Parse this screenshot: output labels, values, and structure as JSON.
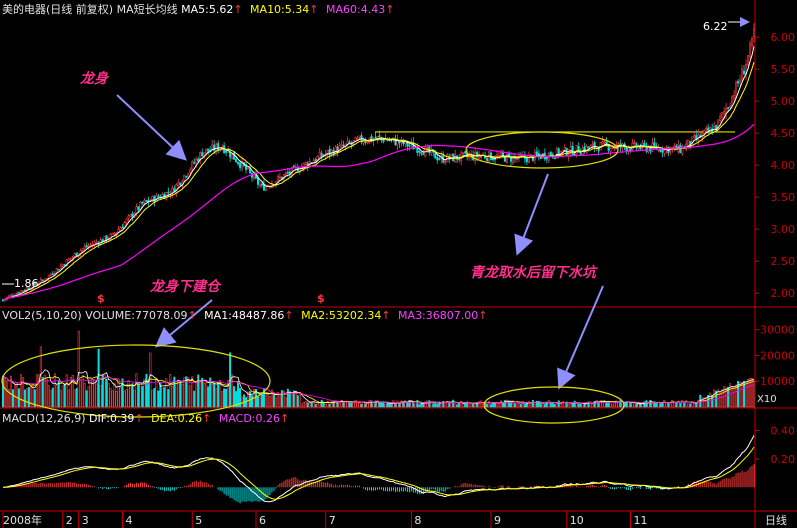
{
  "header": {
    "stock_name": "美的电器(日线 前复权)",
    "ma_title": "MA短长均线",
    "ma5": "MA5:5.62",
    "ma10": "MA10:5.34",
    "ma60": "MA60:4.43",
    "arrow": "↑"
  },
  "volume_header": {
    "title": "VOL2(5,10,20)",
    "volume": "VOLUME:77078.09",
    "ma1": "MA1:48487.86",
    "ma2": "MA2:53202.34",
    "ma3": "MA3:36807.00",
    "arrow": "↑"
  },
  "macd_header": {
    "title": "MACD(12,26,9)",
    "dif": "DIF:0.39",
    "dea": "DEA:0.26",
    "macd": "MACD:0.26",
    "arrow": "↑"
  },
  "annotations": {
    "dragon_body": "龙身",
    "dragon_build": "龙身下建仓",
    "pit": "青龙取水后留下水坑",
    "high_label": "6.22",
    "low_label": "1.86",
    "signal": "$",
    "vol_unit": "X10"
  },
  "colors": {
    "up": "#ff3b3b",
    "down": "#00e0e0",
    "ma5": "#ffffff",
    "ma10": "#ffff00",
    "ma60": "#ff00ff",
    "annotation": "#ff2d8c",
    "arrow": "#8f8fff",
    "ellipse": "#e0e000",
    "axis": "#cc0000"
  },
  "chart_data": [
    {
      "type": "candlestick",
      "panel": "price",
      "yticks": [
        2.0,
        2.5,
        3.0,
        3.5,
        4.0,
        4.5,
        5.0,
        5.5,
        6.0
      ],
      "ylim": [
        1.8,
        6.3
      ],
      "high": 6.22,
      "low": 1.86,
      "series": [
        {
          "name": "MA5",
          "value": 5.62
        },
        {
          "name": "MA10",
          "value": 5.34
        },
        {
          "name": "MA60",
          "value": 4.43
        }
      ],
      "resistance_level": 4.52,
      "trend_anchors": [
        [
          0,
          1.9
        ],
        [
          20,
          2.2
        ],
        [
          40,
          2.7
        ],
        [
          55,
          2.9
        ],
        [
          70,
          3.4
        ],
        [
          85,
          3.6
        ],
        [
          100,
          4.2
        ],
        [
          110,
          4.3
        ],
        [
          120,
          4.0
        ],
        [
          130,
          3.65
        ],
        [
          145,
          3.9
        ],
        [
          160,
          4.15
        ],
        [
          180,
          4.4
        ],
        [
          190,
          4.42
        ],
        [
          200,
          4.35
        ],
        [
          210,
          4.25
        ],
        [
          220,
          4.1
        ],
        [
          240,
          4.15
        ],
        [
          260,
          4.1
        ],
        [
          280,
          4.2
        ],
        [
          300,
          4.3
        ],
        [
          320,
          4.28
        ],
        [
          340,
          4.25
        ],
        [
          350,
          4.45
        ],
        [
          358,
          4.6
        ],
        [
          365,
          5.0
        ],
        [
          372,
          5.5
        ],
        [
          377,
          6.0
        ]
      ]
    },
    {
      "type": "bar",
      "panel": "volume",
      "yticks": [
        10000,
        20000,
        30000
      ],
      "ylim": [
        0,
        33000
      ],
      "unit": "X10",
      "series": [
        {
          "name": "VOLUME",
          "value": 77078.09
        },
        {
          "name": "MA1",
          "value": 48487.86
        },
        {
          "name": "MA2",
          "value": 53202.34
        },
        {
          "name": "MA3",
          "value": 36807.0
        }
      ]
    },
    {
      "type": "line",
      "panel": "macd",
      "yticks": [
        0.2,
        0.4
      ],
      "ylim": [
        -0.16,
        0.46
      ],
      "series": [
        {
          "name": "DIF",
          "value": 0.39
        },
        {
          "name": "DEA",
          "value": 0.26
        },
        {
          "name": "MACD",
          "value": 0.26
        }
      ]
    },
    {
      "type": "axis",
      "panel": "time",
      "x_labels": [
        "2008年",
        "2",
        "3",
        "4",
        "5",
        "6",
        "7",
        "8",
        "9",
        "10",
        "11"
      ],
      "label_positions": [
        0,
        30,
        38,
        60,
        95,
        127,
        162,
        205,
        245,
        283,
        315
      ],
      "period": "日线"
    }
  ]
}
